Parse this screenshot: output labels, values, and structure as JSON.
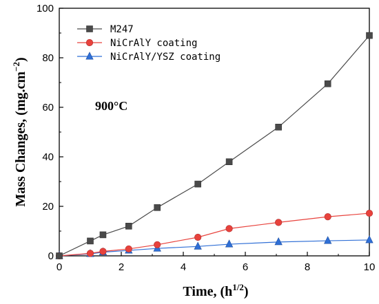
{
  "chart_data": {
    "type": "line",
    "title": "",
    "xlabel": "Time, (h",
    "xlabel_sup": "1/2",
    "xlabel_close": ")",
    "ylabel": "Mass Changes, (mg.cm",
    "ylabel_sup": "−2",
    "ylabel_close": ")",
    "xlim": [
      0,
      10
    ],
    "ylim": [
      0,
      100
    ],
    "x_ticks": [
      0,
      2,
      4,
      6,
      8,
      10
    ],
    "y_ticks": [
      0,
      20,
      40,
      60,
      80,
      100
    ],
    "annotation": "900°C",
    "legend_position": "top-left",
    "grid": false,
    "series": [
      {
        "name": "M247",
        "color": "#4a4a4a",
        "marker": "square",
        "x": [
          0,
          1,
          1.41,
          2.24,
          3.16,
          4.47,
          5.48,
          7.07,
          8.66,
          10
        ],
        "y": [
          0,
          6,
          8.5,
          12,
          19.5,
          29,
          38,
          52,
          69.5,
          89
        ]
      },
      {
        "name": "NiCrAlY coating",
        "color": "#e8423c",
        "marker": "circle",
        "x": [
          0,
          1,
          1.41,
          2.24,
          3.16,
          4.47,
          5.48,
          7.07,
          8.66,
          10
        ],
        "y": [
          0,
          1,
          1.8,
          2.8,
          4.5,
          7.5,
          11,
          13.5,
          15.8,
          17.2
        ]
      },
      {
        "name": "NiCrAlY/YSZ coating",
        "color": "#2f6fd6",
        "marker": "triangle",
        "x": [
          0,
          1,
          1.41,
          2.24,
          3.16,
          4.47,
          5.48,
          7.07,
          8.66,
          10
        ],
        "y": [
          0,
          0.8,
          1.5,
          2.2,
          3.0,
          3.8,
          4.7,
          5.6,
          6.1,
          6.4
        ]
      }
    ]
  }
}
